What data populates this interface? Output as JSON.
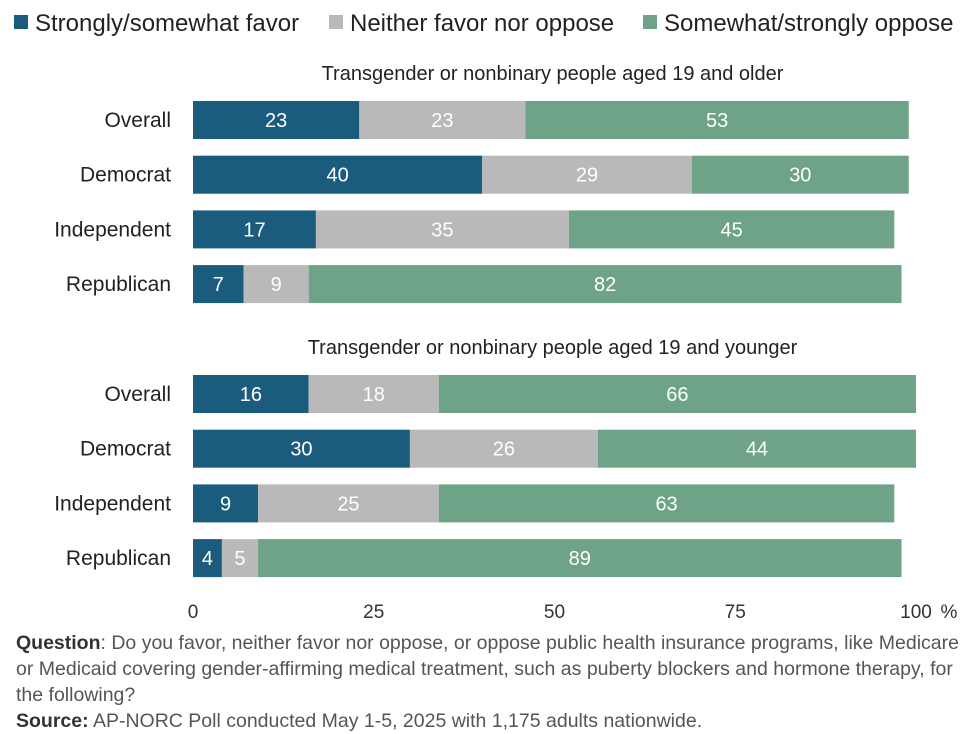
{
  "chart_data": {
    "type": "bar",
    "orientation": "horizontal",
    "stacked": true,
    "legend": {
      "placement": "top",
      "entries": [
        {
          "name": "Strongly/somewhat favor",
          "color": "#1b5b7e"
        },
        {
          "name": "Neither favor nor oppose",
          "color": "#b9b9b9"
        },
        {
          "name": "Somewhat/strongly oppose",
          "color": "#6ea387"
        }
      ]
    },
    "xlim": [
      0,
      100
    ],
    "x_ticks": [
      "0",
      "25",
      "50",
      "75",
      "100"
    ],
    "x_unit": "%",
    "grid": false,
    "panels": [
      {
        "title": "Transgender or nonbinary people aged 19 and older",
        "categories": [
          "Overall",
          "Democrat",
          "Independent",
          "Republican"
        ],
        "series": [
          {
            "name": "Strongly/somewhat favor",
            "values": [
              23,
              40,
              17,
              7
            ]
          },
          {
            "name": "Neither favor nor oppose",
            "values": [
              23,
              29,
              35,
              9
            ]
          },
          {
            "name": "Somewhat/strongly oppose",
            "values": [
              53,
              30,
              45,
              82
            ]
          }
        ]
      },
      {
        "title": "Transgender or nonbinary people aged 19 and younger",
        "categories": [
          "Overall",
          "Democrat",
          "Independent",
          "Republican"
        ],
        "series": [
          {
            "name": "Strongly/somewhat favor",
            "values": [
              16,
              30,
              9,
              4
            ]
          },
          {
            "name": "Neither favor nor oppose",
            "values": [
              18,
              26,
              25,
              5
            ]
          },
          {
            "name": "Somewhat/strongly oppose",
            "values": [
              66,
              44,
              63,
              89
            ]
          }
        ]
      }
    ]
  },
  "footer": {
    "question_label": "Question",
    "question_text": ": Do you favor, neither favor nor oppose, or oppose public health insurance programs, like Medicare or Medicaid covering gender-affirming medical treatment, such as puberty blockers and hormone therapy, for the following?",
    "source_label": "Source:",
    "source_text": " AP-NORC Poll conducted May 1-5, 2025 with 1,175 adults nationwide."
  }
}
